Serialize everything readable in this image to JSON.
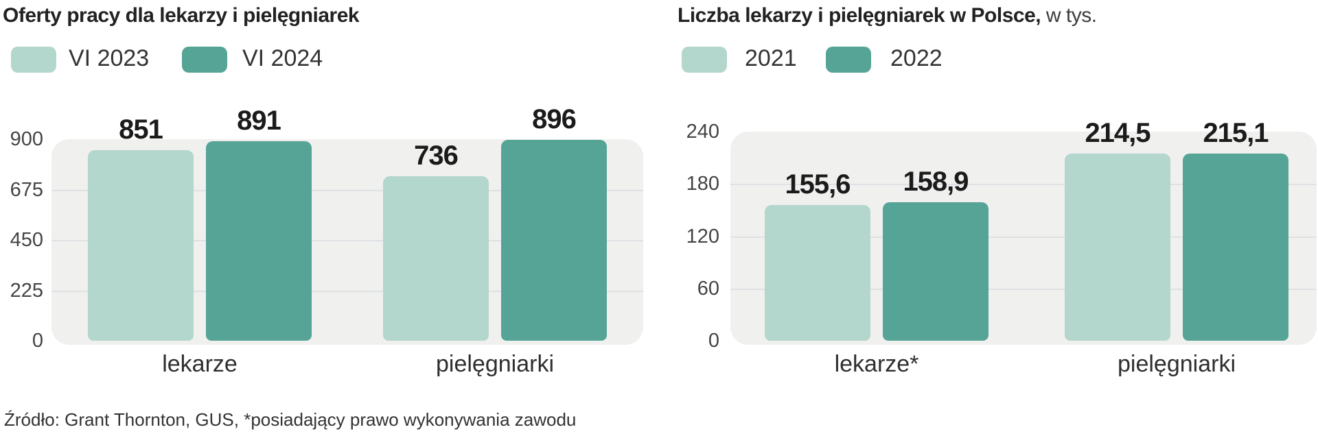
{
  "colors": {
    "series_light": "#b3d6cd",
    "series_dark": "#55a496",
    "plot_background": "#f0f0ef",
    "gridline": "#dde1e3",
    "text_dark": "#222222"
  },
  "charts": [
    {
      "title_bold": "Oferty pracy dla lekarzy i pielęgniarek",
      "title_suffix": "",
      "legend": [
        "VI 2023",
        "VI 2024"
      ]
    },
    {
      "title_bold": "Liczba lekarzy i pielęgniarek w Polsce,",
      "title_suffix": " w tys.",
      "legend": [
        "2021",
        "2022"
      ]
    }
  ],
  "source": "Źródło: Grant Thornton, GUS, *posiadający prawo wykonywania zawodu",
  "chart_data": [
    {
      "type": "bar",
      "title": "Oferty pracy dla lekarzy i pielęgniarek",
      "subtitle": "",
      "categories": [
        "lekarze",
        "pielęgniarki"
      ],
      "series": [
        {
          "name": "VI 2023",
          "values": [
            851,
            736
          ]
        },
        {
          "name": "VI 2024",
          "values": [
            891,
            896
          ]
        }
      ],
      "value_labels": [
        [
          "851",
          "736"
        ],
        [
          "891",
          "896"
        ]
      ],
      "ylim": [
        0,
        900
      ],
      "yticks": [
        0,
        225,
        450,
        675,
        900
      ],
      "xlabel": "",
      "ylabel": "",
      "grid": "horizontal",
      "legend_position": "top"
    },
    {
      "type": "bar",
      "title": "Liczba lekarzy i pielęgniarek w Polsce,",
      "subtitle": "w tys.",
      "categories": [
        "lekarze*",
        "pielęgniarki"
      ],
      "series": [
        {
          "name": "2021",
          "values": [
            155.6,
            214.5
          ]
        },
        {
          "name": "2022",
          "values": [
            158.9,
            215.1
          ]
        }
      ],
      "value_labels": [
        [
          "155,6",
          "214,5"
        ],
        [
          "158,9",
          "215,1"
        ]
      ],
      "ylim": [
        0,
        240
      ],
      "yticks": [
        0,
        60,
        120,
        180,
        240
      ],
      "xlabel": "",
      "ylabel": "",
      "grid": "horizontal",
      "legend_position": "top"
    }
  ]
}
